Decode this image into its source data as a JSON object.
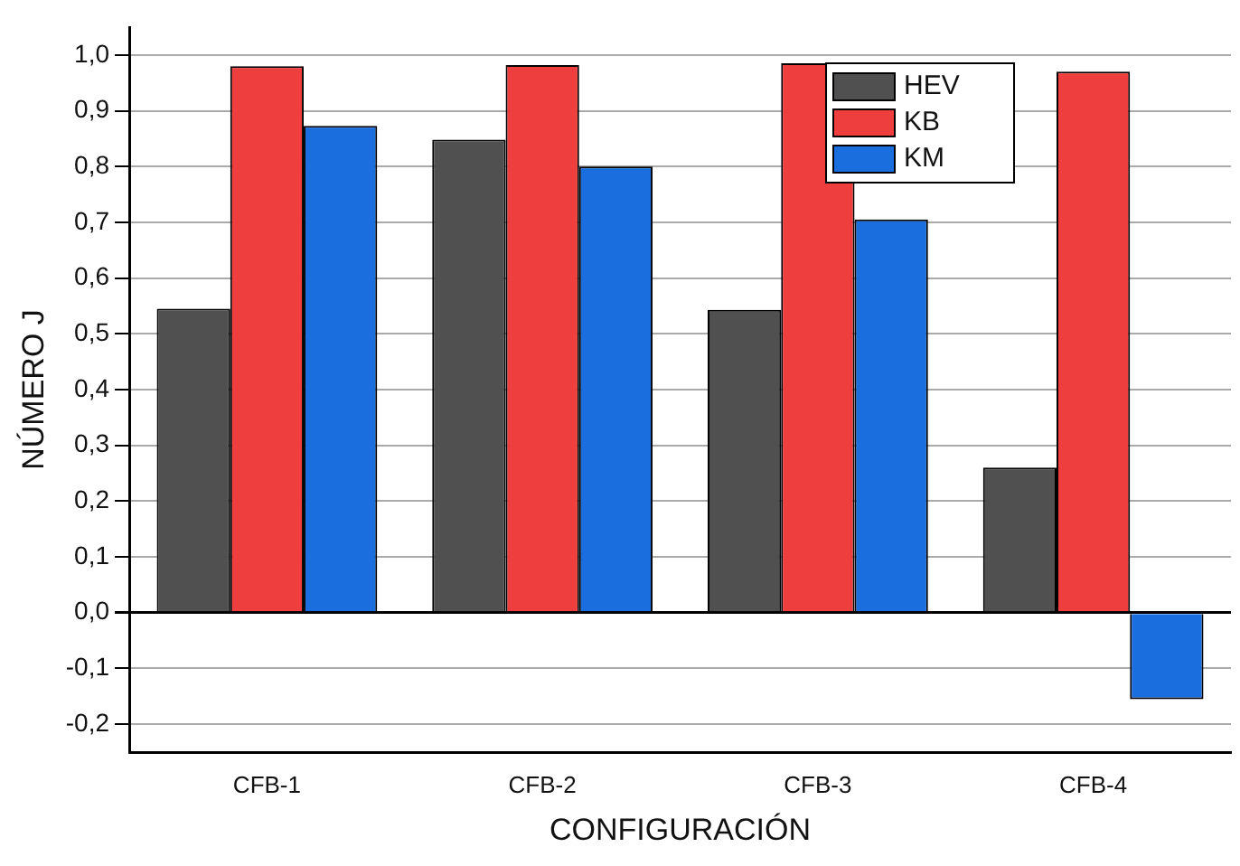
{
  "chart_data": {
    "type": "bar",
    "xlabel": "CONFIGURACIÓN",
    "ylabel": "NÚMERO J",
    "categories": [
      "CFB-1",
      "CFB-2",
      "CFB-3",
      "CFB-4"
    ],
    "series": [
      {
        "name": "HEV",
        "color": "#505050",
        "values": [
          0.545,
          0.848,
          0.543,
          0.26
        ]
      },
      {
        "name": "KB",
        "color": "#ef3e3e",
        "values": [
          0.98,
          0.982,
          0.985,
          0.97
        ]
      },
      {
        "name": "KM",
        "color": "#1a6ede",
        "values": [
          0.873,
          0.8,
          0.705,
          -0.155
        ]
      }
    ],
    "ylim": [
      -0.25,
      1.05
    ],
    "yticks": [
      {
        "value": -0.2,
        "label": "-0,2"
      },
      {
        "value": -0.1,
        "label": "-0,1"
      },
      {
        "value": 0,
        "label": "0,0"
      },
      {
        "value": 0.1,
        "label": "0,1"
      },
      {
        "value": 0.2,
        "label": "0,2"
      },
      {
        "value": 0.3,
        "label": "0,3"
      },
      {
        "value": 0.4,
        "label": "0,4"
      },
      {
        "value": 0.5,
        "label": "0,5"
      },
      {
        "value": 0.6,
        "label": "0,6"
      },
      {
        "value": 0.7,
        "label": "0,7"
      },
      {
        "value": 0.8,
        "label": "0,8"
      },
      {
        "value": 0.9,
        "label": "0,9"
      },
      {
        "value": 1,
        "label": "1,0"
      }
    ],
    "grid": "y",
    "legend": "top right"
  }
}
